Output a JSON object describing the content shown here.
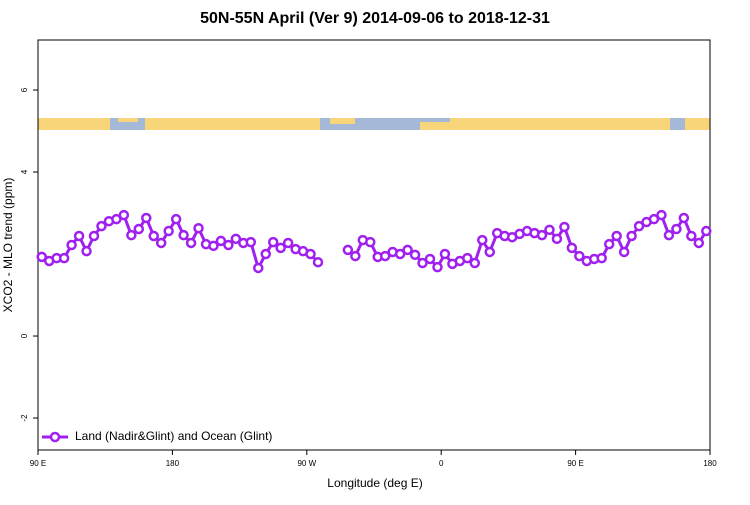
{
  "chart_data": {
    "type": "line",
    "title": "50N-55N April (Ver 9)   2014-09-06 to 2018-12-31",
    "x_label": "Longitude (deg E)",
    "y_label": "XCO2 - MLO trend (ppm)",
    "x": [
      92.5,
      97.5,
      102.5,
      107.5,
      112.5,
      117.5,
      122.5,
      127.5,
      132.5,
      137.5,
      142.5,
      147.5,
      152.5,
      157.5,
      162.5,
      167.5,
      172.5,
      177.5,
      182.5,
      187.5,
      192.5,
      197.5,
      202.5,
      207.5,
      212.5,
      217.5,
      222.5,
      227.5,
      232.5,
      237.5,
      242.5,
      247.5,
      252.5,
      257.5,
      262.5,
      267.5,
      272.5,
      277.5,
      282.5,
      287.5,
      292.5,
      297.5,
      302.5,
      307.5,
      312.5,
      317.5,
      322.5,
      327.5,
      332.5,
      337.5,
      342.5,
      347.5,
      352.5,
      357.5,
      362.5,
      367.5,
      372.5,
      377.5,
      382.5,
      387.5,
      392.5,
      397.5,
      402.5,
      407.5,
      412.5,
      417.5,
      422.5,
      427.5,
      432.5,
      437.5,
      442.5,
      447.5,
      452.5,
      457.5,
      462.5,
      467.5,
      472.5,
      477.5,
      482.5,
      487.5,
      492.5,
      497.5,
      502.5,
      507.5,
      512.5,
      517.5,
      522.5,
      527.5,
      532.5,
      537.5
    ],
    "series": [
      {
        "name": "Land (Nadir&Glint) and Ocean (Glint)",
        "color": "#a020f0",
        "values": [
          1.93,
          1.83,
          1.9,
          1.9,
          2.22,
          2.44,
          2.07,
          2.44,
          2.68,
          2.8,
          2.85,
          2.95,
          2.46,
          2.61,
          2.88,
          2.44,
          2.27,
          2.56,
          2.85,
          2.46,
          2.27,
          2.63,
          2.24,
          2.2,
          2.32,
          2.22,
          2.37,
          2.27,
          2.29,
          1.66,
          2.0,
          2.29,
          2.15,
          2.27,
          2.12,
          2.07,
          2.0,
          1.8,
          null,
          null,
          null,
          2.1,
          1.95,
          2.34,
          2.29,
          1.93,
          1.95,
          2.05,
          2.0,
          2.1,
          1.98,
          1.78,
          1.88,
          1.68,
          2.0,
          1.76,
          1.83,
          1.9,
          1.78,
          2.34,
          2.05,
          2.51,
          2.44,
          2.41,
          2.49,
          2.56,
          2.51,
          2.46,
          2.59,
          2.37,
          2.66,
          2.15,
          1.95,
          1.83,
          1.88,
          1.9,
          2.24,
          2.44,
          2.05,
          2.44,
          2.68,
          2.78,
          2.85,
          2.95,
          2.46,
          2.61,
          2.88,
          2.44,
          2.27,
          2.56
        ]
      }
    ],
    "xlim": [
      90,
      540
    ],
    "xticks": [
      {
        "value": 90,
        "label": "90 E"
      },
      180,
      {
        "value": 270,
        "label": "90 W"
      },
      {
        "value": 360,
        "label": "0"
      },
      {
        "value": 450,
        "label": "90 E"
      },
      {
        "value": 540,
        "label": "180"
      }
    ],
    "ylim": [
      -2.78,
      7.22
    ],
    "yticks": [
      -2,
      0,
      4,
      6
    ],
    "legend": "bottom-left"
  }
}
